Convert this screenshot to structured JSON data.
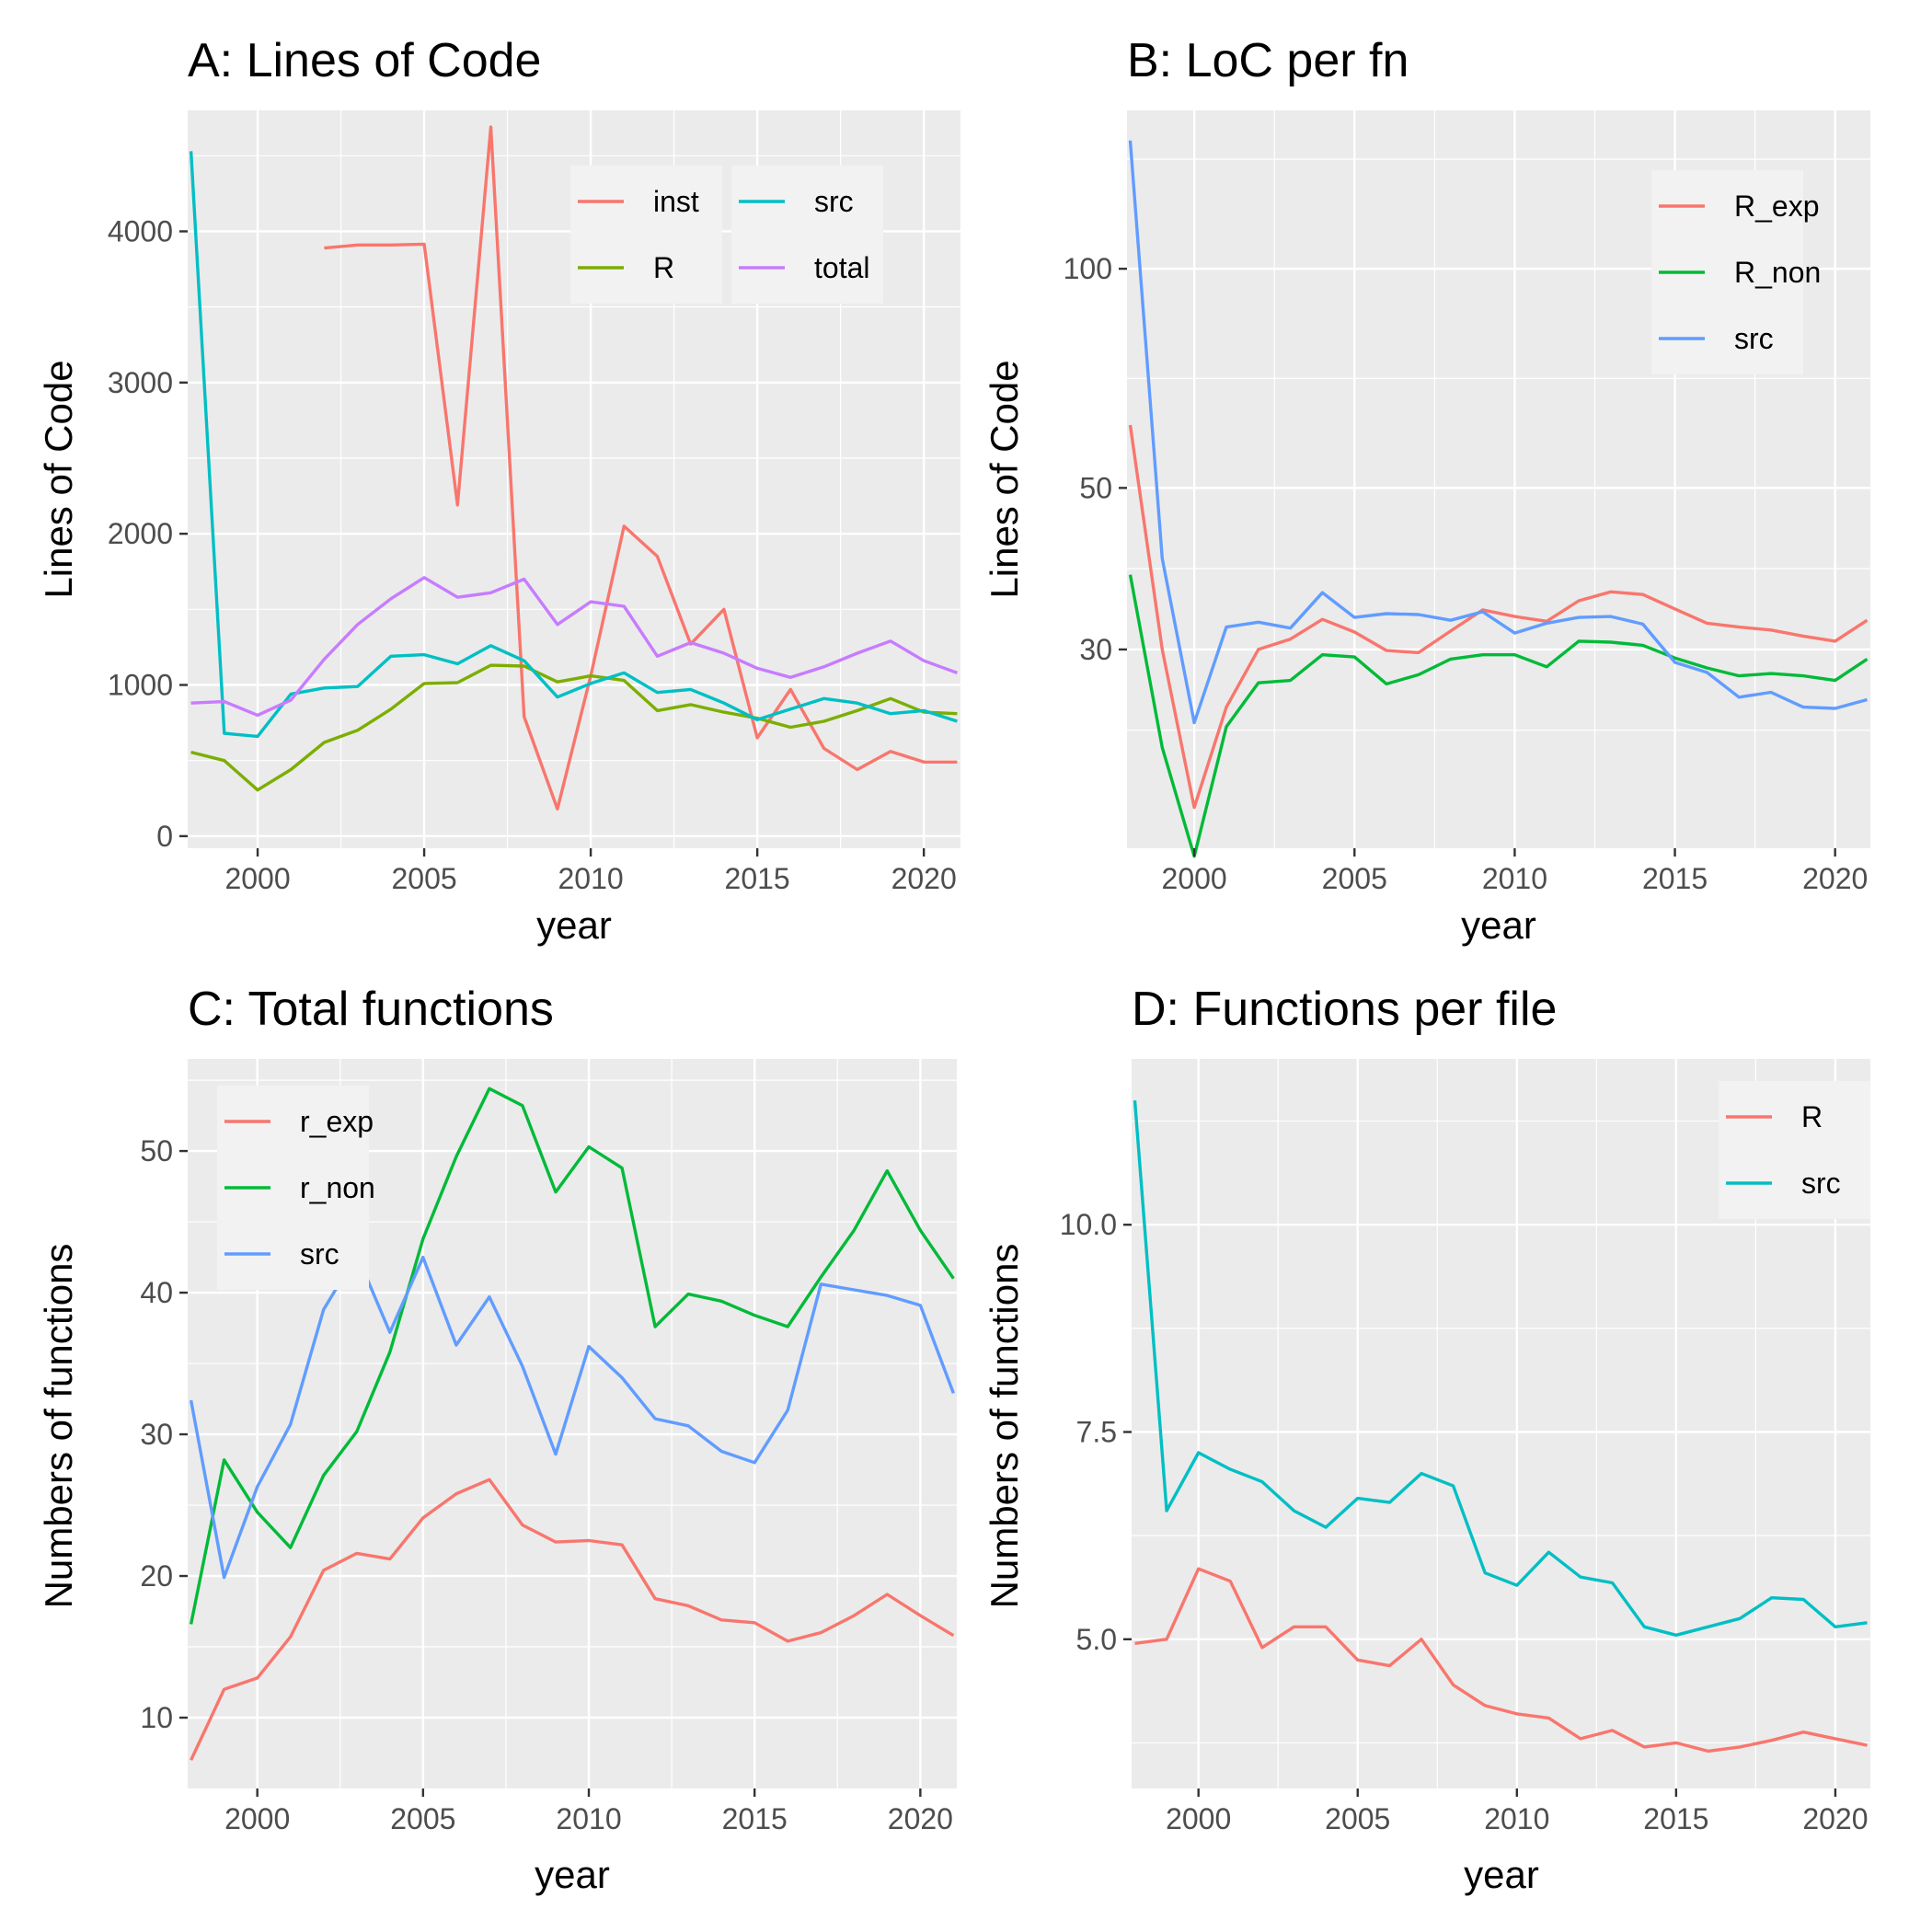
{
  "chart_data": [
    {
      "type": "line",
      "title": "A: Lines of Code",
      "xlabel": "year",
      "ylabel": "Lines of Code",
      "xlim": [
        1997.9,
        2021.1
      ],
      "ylim": [
        -80,
        4800
      ],
      "xticks": [
        2000,
        2005,
        2010,
        2015,
        2020
      ],
      "xtick_labels": [
        "2000",
        "2005",
        "2010",
        "2015",
        "2020"
      ],
      "yticks": [
        0,
        1000,
        2000,
        3000,
        4000
      ],
      "ytick_labels": [
        "0",
        "1000",
        "2000",
        "3000",
        "4000"
      ],
      "x": [
        1998,
        1999,
        2000,
        2001,
        2002,
        2003,
        2004,
        2005,
        2006,
        2007,
        2008,
        2009,
        2010,
        2011,
        2012,
        2013,
        2014,
        2015,
        2016,
        2017,
        2018,
        2019,
        2020,
        2021
      ],
      "grid": true,
      "legend_position": "top-right",
      "legend_columns": 2,
      "series": [
        {
          "name": "inst",
          "color": "#F8766D",
          "values": [
            null,
            null,
            null,
            null,
            3890,
            3910,
            3910,
            3915,
            2190,
            4690,
            790,
            180,
            1060,
            2050,
            1850,
            1270,
            1500,
            650,
            970,
            580,
            440,
            560,
            490,
            490
          ]
        },
        {
          "name": "R",
          "color": "#7CAE00",
          "values": [
            555,
            500,
            305,
            440,
            620,
            700,
            840,
            1010,
            1015,
            1130,
            1125,
            1020,
            1060,
            1030,
            830,
            870,
            820,
            780,
            720,
            760,
            830,
            910,
            820,
            810
          ]
        },
        {
          "name": "src",
          "color": "#00BFC4",
          "values": [
            4530,
            680,
            660,
            940,
            980,
            990,
            1190,
            1200,
            1140,
            1260,
            1160,
            920,
            1010,
            1080,
            950,
            970,
            880,
            770,
            840,
            910,
            880,
            810,
            830,
            760
          ]
        },
        {
          "name": "total",
          "color": "#C77CFF",
          "values": [
            880,
            890,
            800,
            900,
            1170,
            1400,
            1570,
            1710,
            1580,
            1610,
            1700,
            1400,
            1550,
            1520,
            1190,
            1280,
            1210,
            1110,
            1050,
            1120,
            1210,
            1290,
            1160,
            1080
          ]
        }
      ]
    },
    {
      "type": "line",
      "title": "B: LoC per fn",
      "xlabel": "year",
      "ylabel": "Lines of Code",
      "scale": "log",
      "xlim": [
        1997.9,
        2021.1
      ],
      "ylim": [
        16,
        165
      ],
      "xticks": [
        2000,
        2005,
        2010,
        2015,
        2020
      ],
      "xtick_labels": [
        "2000",
        "2005",
        "2010",
        "2015",
        "2020"
      ],
      "yticks": [
        30,
        50,
        100
      ],
      "ytick_labels": [
        "30",
        "50",
        "100"
      ],
      "x": [
        1998,
        1999,
        2000,
        2001,
        2002,
        2003,
        2004,
        2005,
        2006,
        2007,
        2008,
        2009,
        2010,
        2011,
        2012,
        2013,
        2014,
        2015,
        2016,
        2017,
        2018,
        2019,
        2020,
        2021
      ],
      "grid": true,
      "legend_position": "top-right",
      "legend_columns": 1,
      "series": [
        {
          "name": "R_exp",
          "color": "#F8766D",
          "values": [
            61,
            30,
            18.2,
            25,
            30,
            31,
            33,
            31.7,
            29.9,
            29.7,
            31.8,
            34,
            33.3,
            32.8,
            35,
            36,
            35.7,
            34.1,
            32.6,
            32.2,
            31.9,
            31.3,
            30.8,
            32.9
          ]
        },
        {
          "name": "R_non",
          "color": "#00BA38",
          "values": [
            38,
            22,
            15.6,
            23.5,
            27,
            27.2,
            29.5,
            29.3,
            26.9,
            27.7,
            29.1,
            29.5,
            29.5,
            28.4,
            30.8,
            30.7,
            30.4,
            29.2,
            28.3,
            27.6,
            27.8,
            27.6,
            27.2,
            29.1
          ]
        },
        {
          "name": "src",
          "color": "#619CFF",
          "values": [
            150,
            40,
            23.8,
            32.2,
            32.7,
            32.1,
            35.9,
            33.2,
            33.6,
            33.5,
            32.9,
            33.8,
            31.6,
            32.6,
            33.2,
            33.3,
            32.5,
            28.8,
            27.9,
            25.8,
            26.2,
            25,
            24.9,
            25.6
          ]
        }
      ]
    },
    {
      "type": "line",
      "title": "C: Total functions",
      "xlabel": "year",
      "ylabel": "Numbers of functions",
      "xlim": [
        1997.9,
        2021.1
      ],
      "ylim": [
        5,
        56.5
      ],
      "xticks": [
        2000,
        2005,
        2010,
        2015,
        2020
      ],
      "xtick_labels": [
        "2000",
        "2005",
        "2010",
        "2015",
        "2020"
      ],
      "yticks": [
        10,
        20,
        30,
        40,
        50
      ],
      "ytick_labels": [
        "10",
        "20",
        "30",
        "40",
        "50"
      ],
      "x": [
        1998,
        1999,
        2000,
        2001,
        2002,
        2003,
        2004,
        2005,
        2006,
        2007,
        2008,
        2009,
        2010,
        2011,
        2012,
        2013,
        2014,
        2015,
        2016,
        2017,
        2018,
        2019,
        2020,
        2021
      ],
      "grid": true,
      "legend_position": "top-left",
      "legend_columns": 1,
      "series": [
        {
          "name": "r_exp",
          "color": "#F8766D",
          "values": [
            7,
            12,
            12.8,
            15.7,
            20.4,
            21.6,
            21.2,
            24.1,
            25.8,
            26.8,
            23.6,
            22.4,
            22.5,
            22.2,
            18.4,
            17.9,
            16.9,
            16.7,
            15.4,
            16,
            17.2,
            18.7,
            17.2,
            15.8
          ]
        },
        {
          "name": "r_non",
          "color": "#00BA38",
          "values": [
            16.6,
            28.2,
            24.5,
            22,
            27.1,
            30.2,
            35.8,
            43.8,
            49.6,
            54.4,
            53.2,
            47.1,
            50.3,
            48.8,
            37.6,
            39.9,
            39.4,
            38.4,
            37.6,
            41.1,
            44.4,
            48.6,
            44.4,
            41
          ]
        },
        {
          "name": "src",
          "color": "#619CFF",
          "values": [
            32.4,
            19.9,
            26.3,
            30.7,
            38.8,
            42.7,
            37.2,
            42.5,
            36.3,
            39.7,
            34.8,
            28.6,
            36.2,
            34,
            31.1,
            30.6,
            28.8,
            28,
            31.7,
            40.6,
            40.2,
            39.8,
            39.1,
            32.9
          ]
        }
      ]
    },
    {
      "type": "line",
      "title": "D: Functions per file",
      "xlabel": "year",
      "ylabel": "Numbers of functions",
      "xlim": [
        1997.9,
        2021.1
      ],
      "ylim": [
        3.2,
        12.0
      ],
      "xticks": [
        2000,
        2005,
        2010,
        2015,
        2020
      ],
      "xtick_labels": [
        "2000",
        "2005",
        "2010",
        "2015",
        "2020"
      ],
      "yticks": [
        5.0,
        7.5,
        10.0
      ],
      "ytick_labels": [
        "5.0",
        "7.5",
        "10.0"
      ],
      "x": [
        1998,
        1999,
        2000,
        2001,
        2002,
        2003,
        2004,
        2005,
        2006,
        2007,
        2008,
        2009,
        2010,
        2011,
        2012,
        2013,
        2014,
        2015,
        2016,
        2017,
        2018,
        2019,
        2020,
        2021
      ],
      "grid": true,
      "legend_position": "top-right",
      "legend_columns": 1,
      "series": [
        {
          "name": "R",
          "color": "#F8766D",
          "values": [
            4.95,
            5.0,
            5.85,
            5.7,
            4.9,
            5.15,
            5.15,
            4.75,
            4.68,
            5.0,
            4.45,
            4.2,
            4.1,
            4.05,
            3.8,
            3.9,
            3.7,
            3.75,
            3.65,
            3.7,
            3.78,
            3.88,
            3.8,
            3.72
          ]
        },
        {
          "name": "src",
          "color": "#00BFC4",
          "values": [
            11.5,
            6.55,
            7.25,
            7.05,
            6.9,
            6.55,
            6.35,
            6.7,
            6.65,
            7.0,
            6.85,
            5.8,
            5.65,
            6.05,
            5.75,
            5.68,
            5.15,
            5.05,
            5.15,
            5.25,
            5.5,
            5.48,
            5.15,
            5.2
          ]
        }
      ]
    }
  ]
}
